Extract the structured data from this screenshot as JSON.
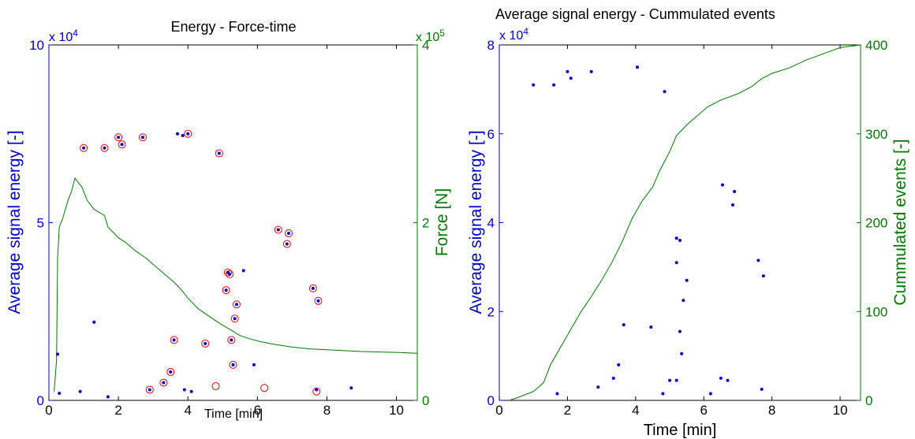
{
  "colors": {
    "blue": "#0000cc",
    "green": "#007a00",
    "red": "#ff0000",
    "axis": "#000000"
  },
  "chart_data": [
    {
      "type": "scatter",
      "title": "Energy - Force-time",
      "xlabel": "Time [min]",
      "ylabel": "Average signal energy [-]",
      "ylabel_right": "Force [N]",
      "multiplier_left": "x 10",
      "multiplier_left_exp": "4",
      "multiplier_right": "x 10",
      "multiplier_right_exp": "5",
      "xlim": [
        0,
        10.6
      ],
      "ylim": [
        0,
        100000
      ],
      "ylim_right": [
        0,
        400000
      ],
      "xticks": [
        "0",
        "2",
        "4",
        "6",
        "8",
        "10"
      ],
      "yticks": [
        "0",
        "5",
        "10"
      ],
      "yticks_right": [
        "0",
        "2",
        "4"
      ],
      "series": [
        {
          "kind": "scatter-blue-dot",
          "points": [
            [
              0.25,
              13000
            ],
            [
              0.3,
              2000
            ],
            [
              0.9,
              2500
            ],
            [
              1.0,
              71000
            ],
            [
              1.3,
              22000
            ],
            [
              1.6,
              71000
            ],
            [
              1.7,
              1000
            ],
            [
              2.0,
              74000
            ],
            [
              2.1,
              72000
            ],
            [
              2.7,
              74000
            ],
            [
              2.9,
              3000
            ],
            [
              3.3,
              5000
            ],
            [
              3.5,
              8000
            ],
            [
              3.6,
              17000
            ],
            [
              3.7,
              75000
            ],
            [
              3.85,
              74500
            ],
            [
              3.9,
              3000
            ],
            [
              4.0,
              75000
            ],
            [
              4.1,
              2500
            ],
            [
              4.5,
              16000
            ],
            [
              4.9,
              69500
            ],
            [
              5.1,
              31000
            ],
            [
              5.15,
              36000
            ],
            [
              5.2,
              35500
            ],
            [
              5.25,
              17000
            ],
            [
              5.3,
              10000
            ],
            [
              5.35,
              23000
            ],
            [
              5.4,
              27000
            ],
            [
              5.6,
              36500
            ],
            [
              5.9,
              10000
            ],
            [
              6.6,
              48000
            ],
            [
              6.85,
              44000
            ],
            [
              6.9,
              47000
            ],
            [
              7.6,
              31500
            ],
            [
              7.75,
              28000
            ],
            [
              7.7,
              3000
            ],
            [
              8.7,
              3500
            ]
          ]
        },
        {
          "kind": "scatter-red-circle",
          "points": [
            [
              1.0,
              71000
            ],
            [
              1.6,
              71000
            ],
            [
              2.0,
              74000
            ],
            [
              2.1,
              72000
            ],
            [
              2.7,
              74000
            ],
            [
              3.3,
              5000
            ],
            [
              3.5,
              8000
            ],
            [
              3.6,
              17000
            ],
            [
              4.0,
              75000
            ],
            [
              4.5,
              16000
            ],
            [
              4.9,
              69500
            ],
            [
              5.1,
              31000
            ],
            [
              5.15,
              36000
            ],
            [
              5.2,
              35500
            ],
            [
              5.25,
              17000
            ],
            [
              5.3,
              10000
            ],
            [
              5.35,
              23000
            ],
            [
              5.4,
              27000
            ],
            [
              6.6,
              48000
            ],
            [
              6.85,
              44000
            ],
            [
              6.9,
              47000
            ],
            [
              7.6,
              31500
            ],
            [
              7.75,
              28000
            ],
            [
              2.9,
              3000
            ],
            [
              4.8,
              4000
            ],
            [
              6.2,
              3500
            ],
            [
              7.7,
              2500
            ]
          ]
        },
        {
          "kind": "line-force",
          "points": [
            [
              0.15,
              10000
            ],
            [
              0.22,
              45000
            ],
            [
              0.25,
              160000
            ],
            [
              0.3,
              195000
            ],
            [
              0.4,
              205000
            ],
            [
              0.55,
              225000
            ],
            [
              0.65,
              235000
            ],
            [
              0.75,
              250000
            ],
            [
              0.85,
              245000
            ],
            [
              0.95,
              240000
            ],
            [
              1.1,
              225000
            ],
            [
              1.3,
              215000
            ],
            [
              1.6,
              208000
            ],
            [
              1.7,
              195000
            ],
            [
              2.0,
              183000
            ],
            [
              2.2,
              178000
            ],
            [
              2.5,
              168000
            ],
            [
              2.8,
              160000
            ],
            [
              3.0,
              153000
            ],
            [
              3.3,
              143000
            ],
            [
              3.6,
              133000
            ],
            [
              3.8,
              125000
            ],
            [
              4.0,
              115000
            ],
            [
              4.3,
              103000
            ],
            [
              4.6,
              95000
            ],
            [
              4.9,
              87000
            ],
            [
              5.2,
              80000
            ],
            [
              5.5,
              73000
            ],
            [
              5.8,
              69000
            ],
            [
              6.1,
              66000
            ],
            [
              6.5,
              63000
            ],
            [
              7.0,
              60000
            ],
            [
              7.5,
              58000
            ],
            [
              8.0,
              57000
            ],
            [
              8.5,
              56000
            ],
            [
              9.0,
              55000
            ],
            [
              9.5,
              54500
            ],
            [
              10.0,
              54000
            ],
            [
              10.6,
              53000
            ]
          ]
        }
      ]
    },
    {
      "type": "scatter",
      "title": "Average signal energy - Cummulated events",
      "xlabel": "Time [min]",
      "ylabel": "Average signal energy [-]",
      "ylabel_right": "Cummulated events [-]",
      "multiplier_left": "x 10",
      "multiplier_left_exp": "4",
      "xlim": [
        0,
        10.6
      ],
      "ylim": [
        0,
        80000
      ],
      "ylim_right": [
        0,
        400
      ],
      "xticks": [
        "0",
        "2",
        "4",
        "6",
        "8",
        "10"
      ],
      "yticks": [
        "0",
        "2",
        "4",
        "6",
        "8"
      ],
      "yticks_right": [
        "0",
        "100",
        "200",
        "300",
        "400"
      ],
      "series": [
        {
          "kind": "scatter-blue-dot",
          "points": [
            [
              1.0,
              71000
            ],
            [
              1.6,
              71000
            ],
            [
              2.0,
              74000
            ],
            [
              2.1,
              72500
            ],
            [
              2.7,
              74000
            ],
            [
              4.05,
              75000
            ],
            [
              4.85,
              69500
            ],
            [
              3.65,
              17000
            ],
            [
              3.5,
              8000
            ],
            [
              3.35,
              5000
            ],
            [
              4.45,
              16500
            ],
            [
              5.2,
              31000
            ],
            [
              5.2,
              36500
            ],
            [
              5.3,
              36000
            ],
            [
              5.3,
              15500
            ],
            [
              5.35,
              10500
            ],
            [
              5.4,
              22500
            ],
            [
              5.5,
              27000
            ],
            [
              6.55,
              48500
            ],
            [
              6.85,
              44000
            ],
            [
              6.9,
              47000
            ],
            [
              7.6,
              31500
            ],
            [
              7.75,
              28000
            ],
            [
              6.5,
              5000
            ],
            [
              6.7,
              4500
            ],
            [
              5.0,
              4500
            ],
            [
              5.2,
              4500
            ],
            [
              7.7,
              2500
            ],
            [
              2.9,
              3000
            ],
            [
              1.7,
              1500
            ],
            [
              4.8,
              1500
            ],
            [
              6.2,
              1500
            ]
          ]
        },
        {
          "kind": "line-cumulative",
          "points": [
            [
              0.3,
              0
            ],
            [
              0.6,
              4
            ],
            [
              1.0,
              10
            ],
            [
              1.3,
              20
            ],
            [
              1.5,
              40
            ],
            [
              1.8,
              60
            ],
            [
              2.1,
              80
            ],
            [
              2.4,
              100
            ],
            [
              2.7,
              117
            ],
            [
              3.0,
              135
            ],
            [
              3.3,
              155
            ],
            [
              3.6,
              178
            ],
            [
              3.9,
              205
            ],
            [
              4.2,
              225
            ],
            [
              4.5,
              240
            ],
            [
              4.7,
              258
            ],
            [
              5.0,
              280
            ],
            [
              5.2,
              298
            ],
            [
              5.5,
              310
            ],
            [
              5.8,
              320
            ],
            [
              6.1,
              330
            ],
            [
              6.5,
              338
            ],
            [
              7.0,
              345
            ],
            [
              7.4,
              353
            ],
            [
              7.7,
              362
            ],
            [
              8.0,
              368
            ],
            [
              8.5,
              374
            ],
            [
              9.0,
              383
            ],
            [
              9.5,
              390
            ],
            [
              10.0,
              397
            ],
            [
              10.6,
              400
            ]
          ]
        }
      ]
    }
  ]
}
